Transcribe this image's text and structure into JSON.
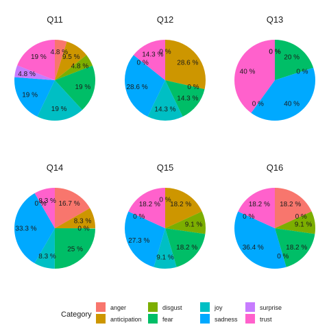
{
  "chart_data": {
    "type": "pie",
    "categories": [
      "anger",
      "anticipation",
      "disgust",
      "fear",
      "joy",
      "sadness",
      "surprise",
      "trust"
    ],
    "colors": {
      "anger": "#F8766D",
      "anticipation": "#CD9600",
      "disgust": "#7CAE00",
      "fear": "#00BE67",
      "joy": "#00BFC4",
      "sadness": "#00A9FF",
      "surprise": "#C77CFF",
      "trust": "#FF61CC"
    },
    "legend": {
      "title": "Category",
      "placement": "bottom"
    },
    "facets": [
      {
        "title": "Q11",
        "slices": [
          {
            "category": "anger",
            "value": 4.8,
            "label": "4.8 %"
          },
          {
            "category": "anticipation",
            "value": 9.5,
            "label": "9.5 %"
          },
          {
            "category": "disgust",
            "value": 4.8,
            "label": "4.8 %"
          },
          {
            "category": "fear",
            "value": 19,
            "label": "19 %"
          },
          {
            "category": "joy",
            "value": 19,
            "label": "19 %"
          },
          {
            "category": "sadness",
            "value": 19,
            "label": "19 %"
          },
          {
            "category": "surprise",
            "value": 4.8,
            "label": "4.8 %"
          },
          {
            "category": "trust",
            "value": 19,
            "label": "19 %"
          }
        ]
      },
      {
        "title": "Q12",
        "slices": [
          {
            "category": "anticipation",
            "value": 28.6,
            "label": "28.6 %"
          },
          {
            "category": "disgust",
            "value": 0,
            "label": "0 %"
          },
          {
            "category": "fear",
            "value": 14.3,
            "label": "14.3 %"
          },
          {
            "category": "joy",
            "value": 14.3,
            "label": "14.3 %"
          },
          {
            "category": "sadness",
            "value": 28.6,
            "label": "28.6 %"
          },
          {
            "category": "surprise",
            "value": 0,
            "label": "0 %"
          },
          {
            "category": "trust",
            "value": 14.3,
            "label": "14.3 %"
          },
          {
            "category": "anger",
            "value": 0,
            "label": "0 %"
          }
        ]
      },
      {
        "title": "Q13",
        "slices": [
          {
            "category": "anger",
            "value": 0,
            "label": "0 %"
          },
          {
            "category": "anticipation",
            "value": 0,
            "label": "0 %"
          },
          {
            "category": "fear",
            "value": 20,
            "label": "20 %"
          },
          {
            "category": "joy",
            "value": 0,
            "label": "0 %"
          },
          {
            "category": "sadness",
            "value": 40,
            "label": "40 %"
          },
          {
            "category": "surprise",
            "value": 0,
            "label": "0 %"
          },
          {
            "category": "trust",
            "value": 40,
            "label": "40 %"
          }
        ]
      },
      {
        "title": "Q14",
        "slices": [
          {
            "category": "anger",
            "value": 16.7,
            "label": "16.7 %"
          },
          {
            "category": "anticipation",
            "value": 8.3,
            "label": "8.3 %"
          },
          {
            "category": "disgust",
            "value": 0,
            "label": "0 %"
          },
          {
            "category": "fear",
            "value": 25,
            "label": "25 %"
          },
          {
            "category": "joy",
            "value": 8.3,
            "label": "8.3 %"
          },
          {
            "category": "sadness",
            "value": 33.3,
            "label": "33.3 %"
          },
          {
            "category": "surprise",
            "value": 0,
            "label": "0 %"
          },
          {
            "category": "trust",
            "value": 8.3,
            "label": "8.3 %"
          }
        ]
      },
      {
        "title": "Q15",
        "slices": [
          {
            "category": "anger",
            "value": 0,
            "label": "0 %"
          },
          {
            "category": "anticipation",
            "value": 18.2,
            "label": "18.2 %"
          },
          {
            "category": "disgust",
            "value": 9.1,
            "label": "9.1 %"
          },
          {
            "category": "fear",
            "value": 18.2,
            "label": "18.2 %"
          },
          {
            "category": "joy",
            "value": 9.1,
            "label": "9.1 %"
          },
          {
            "category": "sadness",
            "value": 27.3,
            "label": "27.3 %"
          },
          {
            "category": "surprise",
            "value": 0,
            "label": "0 %"
          },
          {
            "category": "trust",
            "value": 18.2,
            "label": "18.2 %"
          }
        ]
      },
      {
        "title": "Q16",
        "slices": [
          {
            "category": "anger",
            "value": 18.2,
            "label": "18.2 %"
          },
          {
            "category": "anticipation",
            "value": 0,
            "label": "0 %"
          },
          {
            "category": "disgust",
            "value": 9.1,
            "label": "9.1 %"
          },
          {
            "category": "fear",
            "value": 18.2,
            "label": "18.2 %"
          },
          {
            "category": "joy",
            "value": 0,
            "label": "0 %"
          },
          {
            "category": "sadness",
            "value": 36.4,
            "label": "36.4 %"
          },
          {
            "category": "surprise",
            "value": 0,
            "label": "0 %"
          },
          {
            "category": "trust",
            "value": 18.2,
            "label": "18.2 %"
          }
        ]
      }
    ]
  }
}
